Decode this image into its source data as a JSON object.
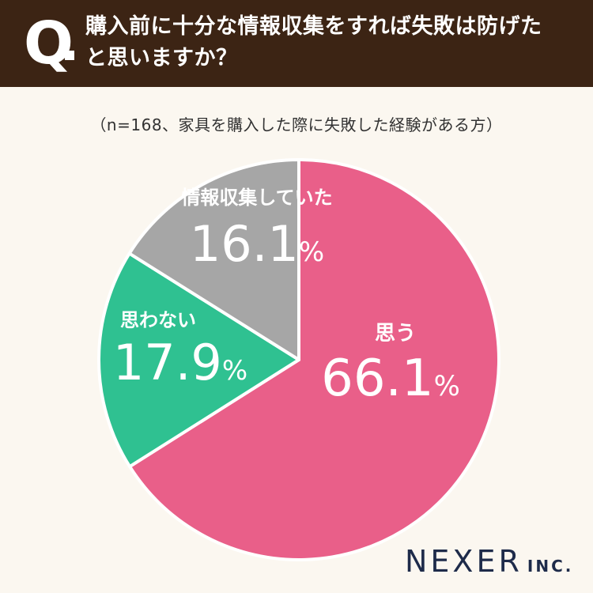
{
  "header": {
    "q_mark": "Q",
    "question_line1": "購入前に十分な情報収集をすれば失敗は防げた",
    "question_line2": "と思いますか？",
    "background_color": "#3c2414"
  },
  "subtitle": "（n=168、家具を購入した際に失敗した経験がある方）",
  "chart_data": {
    "type": "pie",
    "start": "12 o'clock",
    "direction": "clockwise",
    "slices": [
      {
        "label": "思う",
        "value": 66.1,
        "value_text": "66.1",
        "unit": "%",
        "color": "#e95f89"
      },
      {
        "label": "思わない",
        "value": 17.9,
        "value_text": "17.9",
        "unit": "%",
        "color": "#2fc191"
      },
      {
        "label": "情報収集していた",
        "value": 16.1,
        "value_text": "16.1",
        "unit": "%",
        "color": "#a6a6a6"
      }
    ]
  },
  "logo": {
    "name": "NEXER",
    "suffix": "INC.",
    "color": "#1e2b4a"
  }
}
